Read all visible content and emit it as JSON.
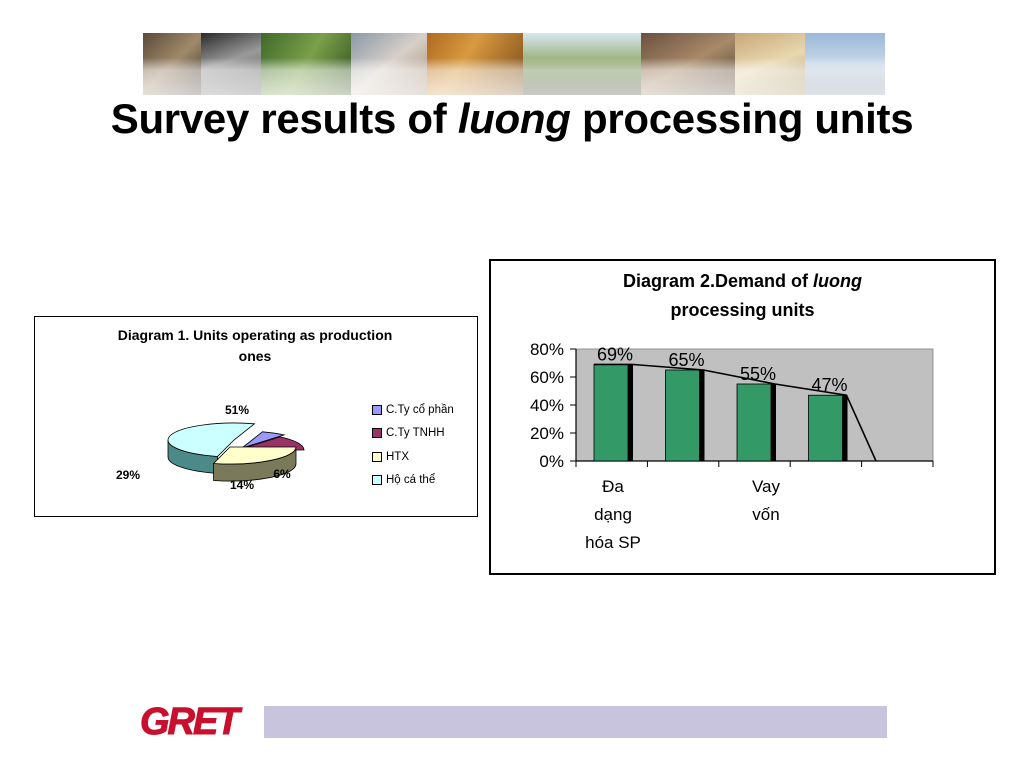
{
  "slide": {
    "title_before": "Survey results of",
    "title_italic": "luong",
    "title_after": "processing units",
    "logo_text": "GRET"
  },
  "colors": {
    "accent_band": "#c8c4de",
    "logo_red": "#c8102e",
    "bar_green": "#339966",
    "plot_gray": "#c0c0c0"
  },
  "chart_data": [
    {
      "type": "pie",
      "title": "Diagram 1. Units operating as production ones",
      "title_lines": [
        "Diagram 1. Units operating as production",
        "ones"
      ],
      "categories": [
        "C.Ty cổ phần",
        "C.Ty TNHH",
        "HTX",
        "Hộ cá thể"
      ],
      "values": [
        6,
        14,
        29,
        51
      ],
      "labels": [
        "6%",
        "14%",
        "29%",
        "51%"
      ],
      "colors": [
        "#9999ff",
        "#993366",
        "#ffffcc",
        "#ccffff"
      ],
      "dark_colors": [
        "#4c4c88",
        "#5c1f3d",
        "#7a7a5a",
        "#4c8a8a"
      ],
      "legend_position": "right"
    },
    {
      "type": "bar",
      "title": "Diagram 2.Demand of luong processing units",
      "title_line1_before": "Diagram 2.Demand of",
      "title_line1_italic": "luong",
      "title_line2": "processing units",
      "categories": [
        "Đa dạng hóa SP",
        "",
        "Vay vốn",
        ""
      ],
      "category_lines": [
        [
          "Đa",
          "dạng",
          "hóa SP"
        ],
        [],
        [
          "Vay",
          "vốn"
        ],
        []
      ],
      "values": [
        69,
        65,
        55,
        47
      ],
      "labels": [
        "69%",
        "65%",
        "55%",
        "47%"
      ],
      "y_ticks": [
        "0%",
        "20%",
        "40%",
        "60%",
        "80%"
      ],
      "ylim": [
        0,
        80
      ],
      "grid": false,
      "legend": false
    }
  ]
}
